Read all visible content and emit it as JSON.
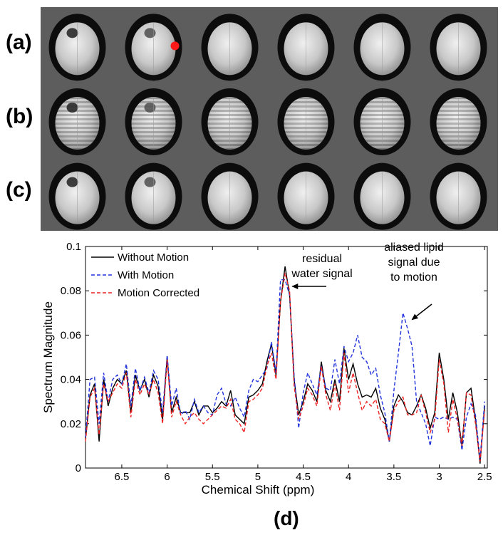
{
  "figure": {
    "row_labels": [
      "(a)",
      "(b)",
      "(c)"
    ],
    "panel_d_label": "(d)",
    "image_grid": {
      "rows": 3,
      "columns": 6,
      "marker_color": "#ff1a1a"
    }
  },
  "chart_data": {
    "type": "line",
    "title": "",
    "xlabel": "Chemical Shift (ppm)",
    "ylabel": "Spectrum Magnitude",
    "xlim": [
      6.9,
      2.47
    ],
    "ylim": [
      0,
      0.1
    ],
    "x_reversed": true,
    "xticks": [
      6.5,
      6,
      5.5,
      5,
      4.5,
      4,
      3.5,
      3,
      2.5
    ],
    "xtick_labels": [
      "6.5",
      "6",
      "5.5",
      "5",
      "4.5",
      "4",
      "3.5",
      "3",
      "2.5"
    ],
    "yticks": [
      0,
      0.02,
      0.04,
      0.06,
      0.08,
      0.1
    ],
    "ytick_labels": [
      "0",
      "0.02",
      "0.04",
      "0.06",
      "0.08",
      "0.1"
    ],
    "legend_position": "top-left",
    "x": [
      6.9,
      6.85,
      6.8,
      6.75,
      6.7,
      6.65,
      6.6,
      6.55,
      6.5,
      6.45,
      6.4,
      6.35,
      6.3,
      6.25,
      6.2,
      6.15,
      6.1,
      6.05,
      6.0,
      5.95,
      5.9,
      5.85,
      5.8,
      5.75,
      5.7,
      5.65,
      5.6,
      5.55,
      5.5,
      5.45,
      5.4,
      5.35,
      5.3,
      5.25,
      5.2,
      5.15,
      5.1,
      5.05,
      5.0,
      4.95,
      4.9,
      4.85,
      4.8,
      4.75,
      4.7,
      4.65,
      4.6,
      4.55,
      4.5,
      4.45,
      4.4,
      4.35,
      4.3,
      4.25,
      4.2,
      4.15,
      4.1,
      4.05,
      4.0,
      3.95,
      3.9,
      3.85,
      3.8,
      3.75,
      3.7,
      3.65,
      3.6,
      3.55,
      3.5,
      3.45,
      3.4,
      3.35,
      3.3,
      3.25,
      3.2,
      3.15,
      3.1,
      3.05,
      3.0,
      2.95,
      2.9,
      2.85,
      2.8,
      2.75,
      2.7,
      2.65,
      2.6,
      2.55,
      2.5
    ],
    "series": [
      {
        "name": "Without Motion",
        "color": "#000000",
        "style": "solid",
        "values": [
          0.013,
          0.033,
          0.038,
          0.012,
          0.04,
          0.028,
          0.036,
          0.04,
          0.038,
          0.044,
          0.025,
          0.042,
          0.035,
          0.04,
          0.032,
          0.042,
          0.037,
          0.022,
          0.05,
          0.025,
          0.032,
          0.025,
          0.025,
          0.025,
          0.03,
          0.024,
          0.028,
          0.028,
          0.025,
          0.027,
          0.03,
          0.028,
          0.035,
          0.024,
          0.022,
          0.02,
          0.032,
          0.033,
          0.035,
          0.038,
          0.048,
          0.056,
          0.042,
          0.075,
          0.091,
          0.078,
          0.04,
          0.024,
          0.03,
          0.038,
          0.035,
          0.03,
          0.048,
          0.035,
          0.03,
          0.04,
          0.03,
          0.054,
          0.04,
          0.047,
          0.038,
          0.032,
          0.033,
          0.032,
          0.036,
          0.027,
          0.022,
          0.012,
          0.028,
          0.033,
          0.03,
          0.025,
          0.024,
          0.028,
          0.033,
          0.027,
          0.018,
          0.025,
          0.052,
          0.04,
          0.022,
          0.034,
          0.025,
          0.01,
          0.034,
          0.036,
          0.022,
          0.002,
          0.028
        ]
      },
      {
        "name": "With Motion",
        "color": "#2233dd",
        "style": "dashed",
        "values": [
          0.014,
          0.04,
          0.041,
          0.02,
          0.043,
          0.03,
          0.04,
          0.042,
          0.038,
          0.047,
          0.028,
          0.045,
          0.035,
          0.041,
          0.034,
          0.044,
          0.04,
          0.025,
          0.051,
          0.028,
          0.036,
          0.024,
          0.026,
          0.022,
          0.031,
          0.025,
          0.028,
          0.025,
          0.024,
          0.033,
          0.036,
          0.029,
          0.028,
          0.032,
          0.027,
          0.023,
          0.035,
          0.04,
          0.039,
          0.042,
          0.045,
          0.057,
          0.043,
          0.085,
          0.085,
          0.078,
          0.042,
          0.018,
          0.034,
          0.043,
          0.038,
          0.033,
          0.046,
          0.036,
          0.035,
          0.049,
          0.038,
          0.055,
          0.048,
          0.052,
          0.06,
          0.05,
          0.048,
          0.042,
          0.045,
          0.033,
          0.025,
          0.012,
          0.035,
          0.052,
          0.07,
          0.063,
          0.055,
          0.03,
          0.025,
          0.02,
          0.01,
          0.023,
          0.022,
          0.023,
          0.022,
          0.023,
          0.022,
          0.008,
          0.023,
          0.029,
          0.024,
          0.004,
          0.03
        ]
      },
      {
        "name": "Motion Corrected",
        "color": "#ee2222",
        "style": "dashed",
        "values": [
          0.012,
          0.032,
          0.036,
          0.015,
          0.038,
          0.03,
          0.034,
          0.038,
          0.036,
          0.043,
          0.023,
          0.04,
          0.033,
          0.038,
          0.033,
          0.04,
          0.034,
          0.02,
          0.049,
          0.023,
          0.03,
          0.024,
          0.02,
          0.023,
          0.025,
          0.022,
          0.02,
          0.022,
          0.024,
          0.026,
          0.028,
          0.027,
          0.031,
          0.022,
          0.02,
          0.016,
          0.03,
          0.031,
          0.033,
          0.036,
          0.046,
          0.052,
          0.04,
          0.075,
          0.088,
          0.08,
          0.037,
          0.022,
          0.028,
          0.036,
          0.033,
          0.028,
          0.046,
          0.033,
          0.026,
          0.038,
          0.026,
          0.052,
          0.034,
          0.043,
          0.034,
          0.026,
          0.03,
          0.028,
          0.031,
          0.022,
          0.02,
          0.012,
          0.026,
          0.03,
          0.032,
          0.024,
          0.024,
          0.025,
          0.033,
          0.025,
          0.016,
          0.022,
          0.049,
          0.038,
          0.016,
          0.031,
          0.022,
          0.01,
          0.034,
          0.033,
          0.02,
          0.003,
          0.026
        ]
      }
    ],
    "annotations": [
      {
        "lines": [
          "residual",
          "water signal"
        ],
        "target_x": 4.62,
        "target_y": 0.082
      },
      {
        "lines": [
          "aliased lipid",
          "signal due",
          "to motion"
        ],
        "target_x": 3.3,
        "target_y": 0.067
      }
    ]
  }
}
